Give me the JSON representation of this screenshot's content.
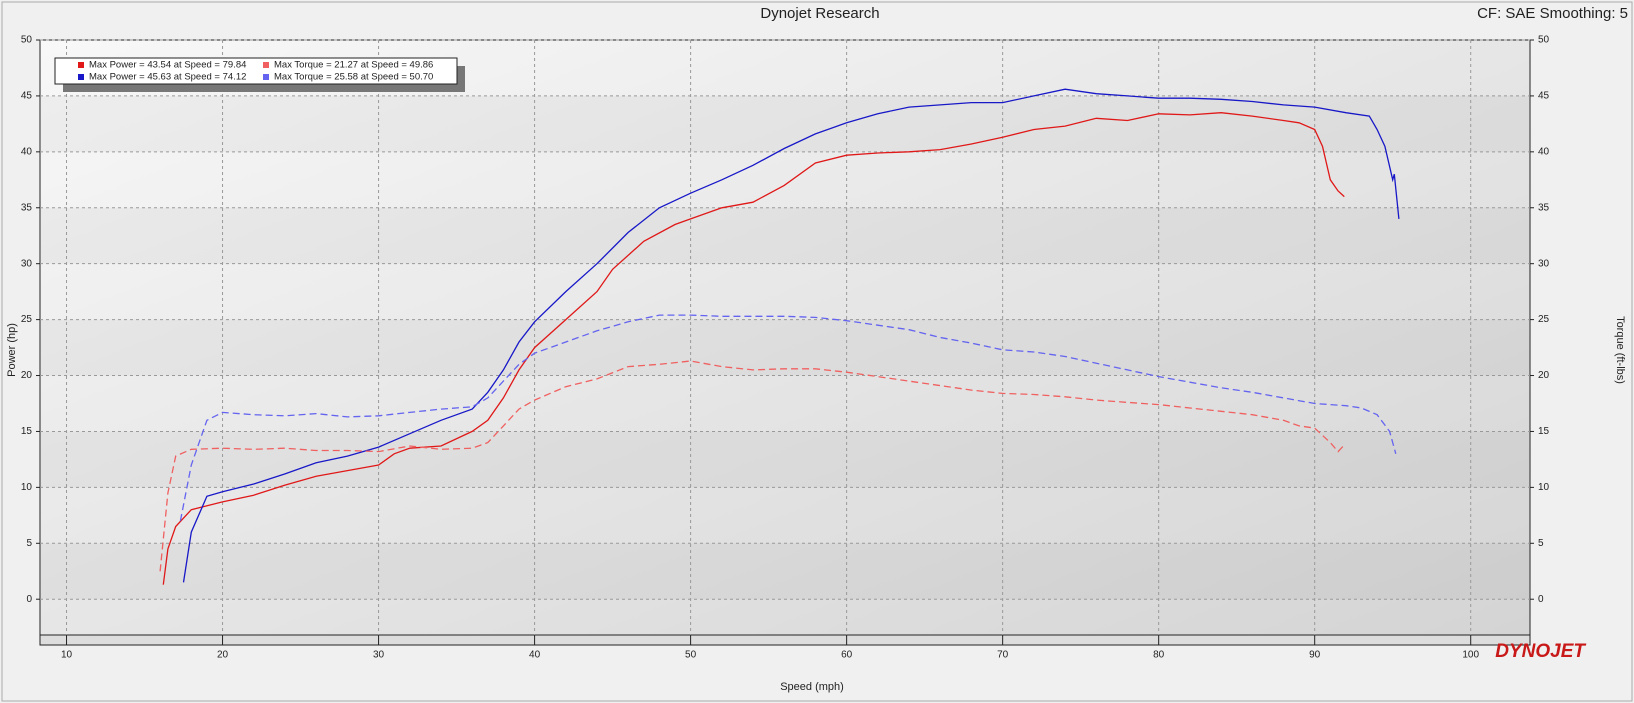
{
  "chart_data": {
    "type": "line",
    "title": "Dynojet Research",
    "subtitle": "CF: SAE Smoothing: 5",
    "x_label": "Speed (mph)",
    "y_label": "Power (hp)",
    "y2_label": "Torque (ft-lbs)",
    "logo": "DYNOJET",
    "xlim": [
      8.3,
      103.8
    ],
    "xticks": [
      10,
      20,
      30,
      40,
      50,
      60,
      70,
      80,
      90,
      100
    ],
    "ylim": [
      -3.2,
      50
    ],
    "yticks": [
      0,
      5,
      10,
      15,
      20,
      25,
      30,
      35,
      40,
      45,
      50
    ],
    "y2lim": [
      -3.2,
      50
    ],
    "y2ticks": [
      0,
      5,
      10,
      15,
      20,
      25,
      30,
      35,
      40,
      45,
      50
    ],
    "grid": true,
    "legend": "top-left",
    "series": [
      {
        "name": "Max Power = 43.54 at Speed = 79.84",
        "color": "#e01818",
        "dash": false,
        "axis": "y",
        "x": [
          16.2,
          16.5,
          17,
          18,
          20,
          22,
          24,
          26,
          28,
          30,
          31,
          32,
          34,
          36,
          37,
          38,
          39,
          40,
          42,
          44,
          45,
          47,
          49,
          50,
          52,
          54,
          56,
          58,
          60,
          62,
          64,
          66,
          68,
          70,
          72,
          74,
          76,
          78,
          80,
          82,
          84,
          86,
          88,
          89,
          90,
          90.5,
          91,
          91.5,
          91.9
        ],
        "values": [
          1.3,
          4.5,
          6.5,
          8,
          8.7,
          9.3,
          10.2,
          11,
          11.5,
          12,
          13,
          13.5,
          13.7,
          15,
          16,
          18,
          20.5,
          22.5,
          25,
          27.5,
          29.5,
          32,
          33.5,
          34,
          35,
          35.5,
          37,
          39,
          39.7,
          39.9,
          40,
          40.2,
          40.7,
          41.3,
          42,
          42.3,
          43,
          42.8,
          43.4,
          43.3,
          43.5,
          43.2,
          42.8,
          42.6,
          42,
          40.5,
          37.5,
          36.5,
          36
        ]
      },
      {
        "name": "Max Power = 45.63 at Speed = 74.12",
        "color": "#1818c8",
        "dash": false,
        "axis": "y",
        "x": [
          17.5,
          18,
          19,
          20,
          22,
          24,
          26,
          28,
          30,
          32,
          34,
          36,
          37,
          38,
          39,
          40,
          42,
          44,
          46,
          48,
          50,
          52,
          54,
          56,
          58,
          60,
          62,
          64,
          66,
          68,
          70,
          72,
          74,
          76,
          78,
          80,
          82,
          84,
          86,
          88,
          90,
          92,
          93.5,
          94,
          94.5,
          95,
          95.1,
          95.4
        ],
        "values": [
          1.5,
          6,
          9.2,
          9.6,
          10.3,
          11.2,
          12.2,
          12.8,
          13.6,
          14.8,
          16,
          17,
          18.5,
          20.5,
          23,
          24.8,
          27.5,
          30,
          32.8,
          35,
          36.3,
          37.5,
          38.8,
          40.3,
          41.6,
          42.6,
          43.4,
          44,
          44.2,
          44.4,
          44.4,
          45,
          45.6,
          45.2,
          45,
          44.8,
          44.8,
          44.7,
          44.5,
          44.2,
          44,
          43.5,
          43.2,
          42,
          40.5,
          37.5,
          38,
          34
        ]
      },
      {
        "name": "Max Torque = 21.27 at Speed = 49.86",
        "color": "#f06060",
        "dash": true,
        "axis": "y2",
        "x": [
          16,
          16.5,
          17,
          18,
          20,
          22,
          24,
          26,
          28,
          30,
          32,
          34,
          36,
          37,
          38,
          39,
          40,
          42,
          44,
          46,
          48,
          50,
          52,
          54,
          56,
          58,
          60,
          62,
          64,
          66,
          68,
          70,
          72,
          74,
          76,
          78,
          80,
          82,
          84,
          86,
          88,
          89,
          90,
          91,
          91.5,
          91.9
        ],
        "values": [
          2.5,
          9.5,
          12.8,
          13.4,
          13.5,
          13.4,
          13.5,
          13.3,
          13.3,
          13.2,
          13.7,
          13.4,
          13.5,
          14,
          15.5,
          17,
          17.8,
          19,
          19.7,
          20.8,
          21,
          21.3,
          20.8,
          20.5,
          20.6,
          20.6,
          20.3,
          19.9,
          19.5,
          19.1,
          18.7,
          18.4,
          18.3,
          18.1,
          17.8,
          17.6,
          17.4,
          17.1,
          16.8,
          16.5,
          16,
          15.5,
          15.3,
          14,
          13.2,
          13.8
        ]
      },
      {
        "name": "Max Torque = 25.58 at Speed = 50.70",
        "color": "#6464f0",
        "dash": true,
        "axis": "y2",
        "x": [
          17.3,
          18,
          19,
          20,
          22,
          24,
          26,
          28,
          30,
          32,
          34,
          36,
          37,
          38,
          39,
          40,
          42,
          44,
          46,
          48,
          50,
          52,
          54,
          56,
          58,
          60,
          62,
          64,
          66,
          68,
          70,
          72,
          74,
          76,
          78,
          80,
          82,
          84,
          86,
          88,
          90,
          92,
          93,
          94,
          94.8,
          95.2
        ],
        "values": [
          7,
          12,
          16,
          16.7,
          16.5,
          16.4,
          16.6,
          16.3,
          16.4,
          16.7,
          17,
          17.2,
          18,
          19.5,
          21,
          22,
          23,
          24,
          24.8,
          25.4,
          25.4,
          25.3,
          25.3,
          25.3,
          25.2,
          24.9,
          24.5,
          24.1,
          23.4,
          22.9,
          22.3,
          22.1,
          21.7,
          21.1,
          20.5,
          19.9,
          19.4,
          18.9,
          18.5,
          18,
          17.5,
          17.3,
          17.1,
          16.5,
          15,
          13
        ]
      }
    ]
  }
}
